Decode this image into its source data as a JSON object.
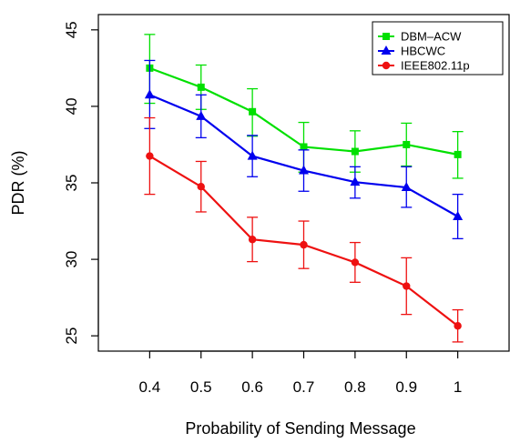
{
  "chart_data": {
    "type": "line",
    "xlabel": "Probability of Sending Message",
    "ylabel": "PDR (%)",
    "x": [
      0.4,
      0.5,
      0.6,
      0.7,
      0.8,
      0.9,
      1.0
    ],
    "x_tick_labels": [
      "0.4",
      "0.5",
      "0.6",
      "0.7",
      "0.8",
      "0.9",
      "1"
    ],
    "y_ticks": [
      25,
      30,
      35,
      40,
      45
    ],
    "xlim": [
      0.3,
      1.1
    ],
    "ylim": [
      24,
      46
    ],
    "grid": false,
    "legend_position": "top-right",
    "series": [
      {
        "name": "DBM–ACW",
        "color": "#00e000",
        "marker": "square",
        "values": [
          42.5,
          41.25,
          39.65,
          37.35,
          37.05,
          37.5,
          36.85
        ],
        "err_low": [
          40.2,
          39.8,
          38.05,
          35.7,
          35.7,
          36.1,
          35.3
        ],
        "err_high": [
          44.7,
          42.7,
          41.15,
          38.95,
          38.4,
          38.9,
          38.35
        ]
      },
      {
        "name": "HBCWC",
        "color": "#0000ee",
        "marker": "triangle",
        "values": [
          40.75,
          39.35,
          36.75,
          35.8,
          35.05,
          34.7,
          32.8
        ],
        "err_low": [
          38.55,
          37.95,
          35.4,
          34.45,
          34.0,
          33.4,
          31.35
        ],
        "err_high": [
          43.0,
          40.75,
          38.1,
          37.15,
          36.05,
          36.05,
          34.25
        ]
      },
      {
        "name": "IEEE802.11p",
        "color": "#ee1111",
        "marker": "circle",
        "values": [
          36.75,
          34.75,
          31.3,
          30.95,
          29.8,
          28.25,
          25.65
        ],
        "err_low": [
          34.25,
          33.1,
          29.85,
          29.4,
          28.5,
          26.4,
          24.6
        ],
        "err_high": [
          39.25,
          36.4,
          32.75,
          32.5,
          31.1,
          30.1,
          26.7
        ]
      }
    ]
  }
}
